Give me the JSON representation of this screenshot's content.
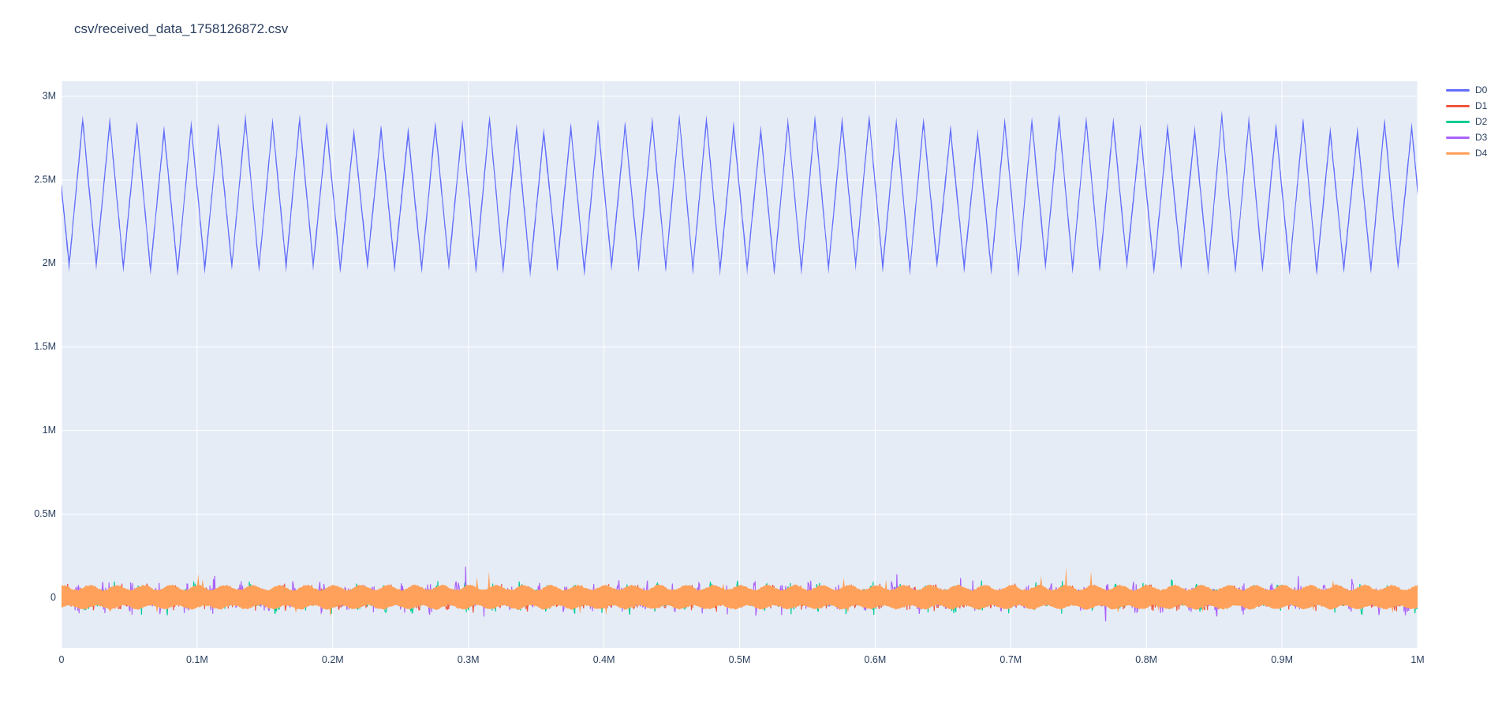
{
  "figure": {
    "title": "csv/received_data_1758126872.csv"
  },
  "colors": {
    "page_bg": "#FFFFFF",
    "plot_bg": "#E5ECF6",
    "grid": "#FFFFFF",
    "text": "#2A3F5F"
  },
  "chart_data": {
    "type": "line",
    "title": "csv/received_data_1758126872.csv",
    "xlabel": "",
    "ylabel": "",
    "grid": true,
    "legend_position": "top-right-outside",
    "x_range": [
      0,
      1000000
    ],
    "y_range": [
      -300000,
      3090000
    ],
    "x_ticks": {
      "values": [
        0,
        100000,
        200000,
        300000,
        400000,
        500000,
        600000,
        700000,
        800000,
        900000,
        1000000
      ],
      "labels": [
        "0",
        "0.1M",
        "0.2M",
        "0.3M",
        "0.4M",
        "0.5M",
        "0.6M",
        "0.7M",
        "0.8M",
        "0.9M",
        "1M"
      ]
    },
    "y_ticks": {
      "values": [
        0,
        500000,
        1000000,
        1500000,
        2000000,
        2500000,
        3000000
      ],
      "labels": [
        "0",
        "0.5M",
        "1M",
        "1.5M",
        "2M",
        "2.5M",
        "3M"
      ]
    },
    "series": [
      {
        "name": "D0",
        "color": "#636EFA",
        "shape": "triangle-band",
        "description": "thick triangular sawtooth band oscillating between troughs ~1.95M-2.0M and peaks ~2.78M-2.87M, period 20000 (50 cycles over 0..1M), band half-thickness ~33000, starts mid-descent ~2.35M at x=0",
        "period": 20000,
        "trough": 1975000,
        "peak": 2825000,
        "peak_var": 40000,
        "trough_var": 22000,
        "band_half_width": 33000,
        "phase": 0.72
      },
      {
        "name": "D1",
        "color": "#EF553B",
        "shape": "noise",
        "description": "red noise around 0, mostly hidden under D4 band, peeks out to about +/-0.09M in periodic clusters",
        "base_amp": 52000,
        "burst_amp": 38000,
        "burst_period": 20000,
        "burst_phase": 0.4
      },
      {
        "name": "D2",
        "color": "#00CC96",
        "shape": "noise",
        "description": "green noise around 0 with periodic burst clusters reaching about +/-0.11M above/below the orange band",
        "base_amp": 50000,
        "burst_amp": 58000,
        "burst_period": 20000,
        "burst_phase": 2.1
      },
      {
        "name": "D3",
        "color": "#AB63FA",
        "shape": "noise",
        "description": "purple noise around 0 with burst clusters to about +/-0.12M and occasional tall spikes near x=0.3M (~0.19M) and x=0.62M (~0.14M)",
        "base_amp": 52000,
        "burst_amp": 62000,
        "burst_period": 20000,
        "burst_phase": 4.2,
        "outliers": [
          [
            298000,
            186000
          ],
          [
            616000,
            140000
          ],
          [
            663000,
            118000
          ],
          [
            912000,
            128000
          ]
        ]
      },
      {
        "name": "D4",
        "color": "#FFA15A",
        "shape": "band",
        "description": "solid orange band centered on 0, half-width ~0.055M with gently undulating envelope (period 20000) and sparse thin spikes to ~0.15M",
        "center": 0,
        "half_width": 56000,
        "envelope_wave": 15000,
        "envelope_period": 20000,
        "spike_amp": 70000,
        "spike_prob": 0.012
      }
    ]
  }
}
